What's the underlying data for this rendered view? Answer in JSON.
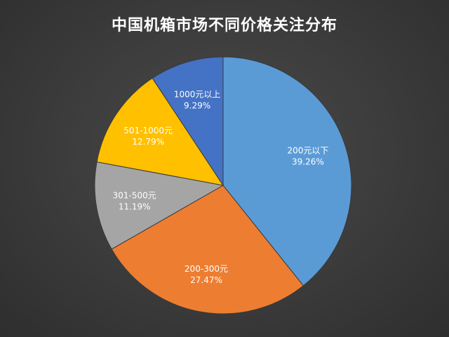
{
  "chart_data": {
    "type": "pie",
    "title": "中国机箱市场不同价格关注分布",
    "categories": [
      "200元以下",
      "200-300元",
      "301-500元",
      "501-1000元",
      "1000元以上"
    ],
    "values": [
      39.26,
      27.47,
      11.19,
      12.79,
      9.29
    ],
    "value_labels": [
      "39.26%",
      "27.47%",
      "11.19%",
      "12.79%",
      "9.29%"
    ],
    "colors": [
      "#5b9bd5",
      "#ed7d31",
      "#a5a5a5",
      "#ffc000",
      "#4472c4"
    ],
    "start_angle": "12 o'clock",
    "direction": "clockwise",
    "legend": "none",
    "data_labels": "inside slices (category and percent)"
  }
}
